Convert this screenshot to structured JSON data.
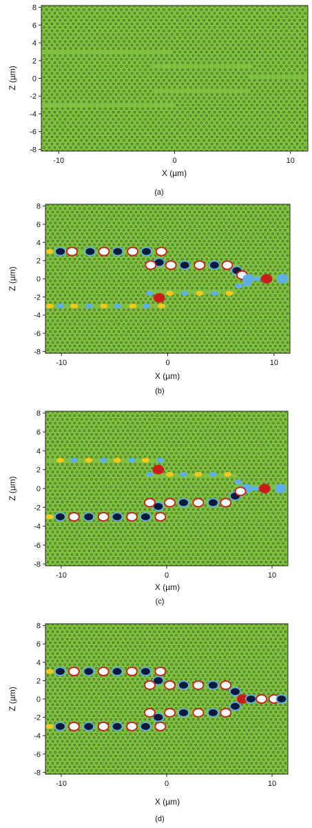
{
  "colors": {
    "background_field": "#7fc040",
    "hole_stroke": "#2f4a18",
    "positive_strong": "#cc1a1a",
    "positive_mid": "#f6c71c",
    "neutral_high": "#ffffff",
    "negative_mid": "#5fb0e8",
    "negative_strong": "#0b1a3a"
  },
  "chart_data": [
    {
      "type": "heatmap",
      "panel": "(a)",
      "caption": "(a)",
      "xlabel": "X (µm)",
      "ylabel": "Z (µm)",
      "xlim": [
        -11.5,
        11.5
      ],
      "ylim": [
        -8.2,
        8.2
      ],
      "x_ticks": [
        "-10",
        "0",
        "10"
      ],
      "y_ticks": [
        "8",
        "6",
        "4",
        "2",
        "0",
        "-2",
        "-4",
        "-6",
        "-8"
      ],
      "description_of_structure": "photonic crystal hole lattice with line-defect waveguides",
      "field_spots": []
    },
    {
      "type": "heatmap",
      "panel": "(b)",
      "caption": "(b)",
      "xlabel": "X (µm)",
      "ylabel": "Z (µm)",
      "xlim": [
        -11.5,
        11.5
      ],
      "ylim": [
        -8.2,
        8.2
      ],
      "x_ticks": [
        "-10",
        "0",
        "10"
      ],
      "y_ticks": [
        "8",
        "6",
        "4",
        "2",
        "0",
        "-2",
        "-4",
        "-6",
        "-8"
      ],
      "field_spots": [
        {
          "x": -11.1,
          "z": 3.0,
          "v": 0.4
        },
        {
          "x": -10.1,
          "z": 3.0,
          "v": -1
        },
        {
          "x": -9.0,
          "z": 3.0,
          "v": 0.8
        },
        {
          "x": -7.3,
          "z": 3.0,
          "v": -1
        },
        {
          "x": -6.0,
          "z": 3.0,
          "v": 0.8
        },
        {
          "x": -4.7,
          "z": 3.0,
          "v": -1
        },
        {
          "x": -3.3,
          "z": 3.0,
          "v": 0.8
        },
        {
          "x": -2.0,
          "z": 3.0,
          "v": -1
        },
        {
          "x": -0.6,
          "z": 3.0,
          "v": 0.8
        },
        {
          "x": -0.8,
          "z": 1.8,
          "v": -1
        },
        {
          "x": -1.6,
          "z": 1.5,
          "v": 0.8
        },
        {
          "x": 0.3,
          "z": 1.5,
          "v": 0.8
        },
        {
          "x": 1.6,
          "z": 1.5,
          "v": -1
        },
        {
          "x": 3.0,
          "z": 1.5,
          "v": 0.8
        },
        {
          "x": 4.4,
          "z": 1.5,
          "v": -1
        },
        {
          "x": 5.6,
          "z": 1.5,
          "v": 0.8
        },
        {
          "x": 6.5,
          "z": 0.9,
          "v": -1
        },
        {
          "x": 7.0,
          "z": 0.4,
          "v": 0.8
        },
        {
          "x": 7.6,
          "z": 0.0,
          "v": -0.6
        },
        {
          "x": 8.4,
          "z": 0.0,
          "v": -0.4
        },
        {
          "x": 9.3,
          "z": 0.0,
          "v": 1
        },
        {
          "x": 10.8,
          "z": 0.0,
          "v": -0.6
        },
        {
          "x": -11.1,
          "z": -3.0,
          "v": 0.5
        },
        {
          "x": -10.1,
          "z": -3.0,
          "v": -0.4
        },
        {
          "x": -8.8,
          "z": -3.0,
          "v": 0.5
        },
        {
          "x": -7.4,
          "z": -3.0,
          "v": -0.4
        },
        {
          "x": -6.0,
          "z": -3.0,
          "v": 0.5
        },
        {
          "x": -4.7,
          "z": -3.0,
          "v": -0.4
        },
        {
          "x": -3.3,
          "z": -3.0,
          "v": 0.5
        },
        {
          "x": -2.0,
          "z": -3.0,
          "v": -0.4
        },
        {
          "x": -0.6,
          "z": -3.0,
          "v": 0.5
        },
        {
          "x": -0.8,
          "z": -2.1,
          "v": 1
        },
        {
          "x": -1.7,
          "z": -1.6,
          "v": -0.5
        },
        {
          "x": 0.2,
          "z": -1.6,
          "v": 0.5
        },
        {
          "x": 1.6,
          "z": -1.6,
          "v": -0.4
        },
        {
          "x": 3.0,
          "z": -1.6,
          "v": 0.5
        },
        {
          "x": 4.4,
          "z": -1.6,
          "v": -0.4
        },
        {
          "x": 5.8,
          "z": -1.6,
          "v": 0.5
        },
        {
          "x": 6.7,
          "z": -0.8,
          "v": -0.4
        },
        {
          "x": 7.4,
          "z": -0.6,
          "v": -0.5
        }
      ]
    },
    {
      "type": "heatmap",
      "panel": "(c)",
      "caption": "(c)",
      "xlabel": "X (µm)",
      "ylabel": "Z (µm)",
      "xlim": [
        -11.5,
        11.5
      ],
      "ylim": [
        -8.2,
        8.2
      ],
      "x_ticks": [
        "-10",
        "0",
        "10"
      ],
      "y_ticks": [
        "8",
        "6",
        "4",
        "2",
        "0",
        "-2",
        "-4",
        "-6",
        "-8"
      ],
      "field_spots": [
        {
          "x": -10.1,
          "z": 3.0,
          "v": 0.5
        },
        {
          "x": -8.8,
          "z": 3.0,
          "v": -0.4
        },
        {
          "x": -7.4,
          "z": 3.0,
          "v": 0.5
        },
        {
          "x": -6.0,
          "z": 3.0,
          "v": -0.4
        },
        {
          "x": -4.7,
          "z": 3.0,
          "v": 0.5
        },
        {
          "x": -3.3,
          "z": 3.0,
          "v": -0.4
        },
        {
          "x": -2.0,
          "z": 3.0,
          "v": 0.5
        },
        {
          "x": -0.6,
          "z": 3.0,
          "v": -0.4
        },
        {
          "x": -0.8,
          "z": 2.0,
          "v": 1
        },
        {
          "x": -1.6,
          "z": 1.5,
          "v": -0.5
        },
        {
          "x": 0.3,
          "z": 1.5,
          "v": 0.5
        },
        {
          "x": 1.6,
          "z": 1.5,
          "v": -0.4
        },
        {
          "x": 3.0,
          "z": 1.5,
          "v": 0.5
        },
        {
          "x": 4.4,
          "z": 1.5,
          "v": -0.4
        },
        {
          "x": 5.8,
          "z": 1.5,
          "v": 0.5
        },
        {
          "x": 6.8,
          "z": 0.7,
          "v": -0.5
        },
        {
          "x": 7.6,
          "z": 0.0,
          "v": -0.6
        },
        {
          "x": 8.4,
          "z": 0.0,
          "v": -0.4
        },
        {
          "x": 9.3,
          "z": 0.0,
          "v": 1
        },
        {
          "x": 10.8,
          "z": 0.0,
          "v": -0.6
        },
        {
          "x": -11.1,
          "z": -3.0,
          "v": 0.4
        },
        {
          "x": -10.1,
          "z": -3.0,
          "v": -1
        },
        {
          "x": -8.8,
          "z": -3.0,
          "v": 0.8
        },
        {
          "x": -7.4,
          "z": -3.0,
          "v": -1
        },
        {
          "x": -6.0,
          "z": -3.0,
          "v": 0.8
        },
        {
          "x": -4.7,
          "z": -3.0,
          "v": -1
        },
        {
          "x": -3.3,
          "z": -3.0,
          "v": 0.8
        },
        {
          "x": -2.0,
          "z": -3.0,
          "v": -1
        },
        {
          "x": -0.6,
          "z": -3.0,
          "v": 0.8
        },
        {
          "x": -0.8,
          "z": -1.9,
          "v": -1
        },
        {
          "x": -1.6,
          "z": -1.5,
          "v": 0.8
        },
        {
          "x": 0.3,
          "z": -1.5,
          "v": 0.8
        },
        {
          "x": 1.6,
          "z": -1.5,
          "v": -1
        },
        {
          "x": 3.0,
          "z": -1.5,
          "v": 0.8
        },
        {
          "x": 4.4,
          "z": -1.5,
          "v": -1
        },
        {
          "x": 5.6,
          "z": -1.5,
          "v": 0.8
        },
        {
          "x": 6.5,
          "z": -0.8,
          "v": -1
        },
        {
          "x": 7.0,
          "z": -0.3,
          "v": 0.8
        }
      ]
    },
    {
      "type": "heatmap",
      "panel": "(d)",
      "caption": "(d)",
      "xlabel": "X (µm)",
      "ylabel": "Z (µm)",
      "xlim": [
        -11.5,
        11.5
      ],
      "ylim": [
        -8.2,
        8.2
      ],
      "x_ticks": [
        "-10",
        "0",
        "10"
      ],
      "y_ticks": [
        "8",
        "6",
        "4",
        "2",
        "0",
        "-2",
        "-4",
        "-6",
        "-8"
      ],
      "field_spots": [
        {
          "x": -11.1,
          "z": 3.0,
          "v": 0.4
        },
        {
          "x": -10.1,
          "z": 3.0,
          "v": -1
        },
        {
          "x": -8.8,
          "z": 3.0,
          "v": 0.8
        },
        {
          "x": -7.4,
          "z": 3.0,
          "v": -1
        },
        {
          "x": -6.0,
          "z": 3.0,
          "v": 0.8
        },
        {
          "x": -4.7,
          "z": 3.0,
          "v": -1
        },
        {
          "x": -3.3,
          "z": 3.0,
          "v": 0.8
        },
        {
          "x": -2.0,
          "z": 3.0,
          "v": -1
        },
        {
          "x": -0.6,
          "z": 3.0,
          "v": 0.8
        },
        {
          "x": -0.8,
          "z": 2.0,
          "v": -1
        },
        {
          "x": -1.6,
          "z": 1.5,
          "v": 0.8
        },
        {
          "x": 0.3,
          "z": 1.5,
          "v": 0.8
        },
        {
          "x": 1.6,
          "z": 1.5,
          "v": -1
        },
        {
          "x": 3.0,
          "z": 1.5,
          "v": 0.8
        },
        {
          "x": 4.4,
          "z": 1.5,
          "v": -1
        },
        {
          "x": 5.6,
          "z": 1.5,
          "v": 0.8
        },
        {
          "x": 6.5,
          "z": 0.8,
          "v": -1
        },
        {
          "x": -11.1,
          "z": -3.0,
          "v": 0.4
        },
        {
          "x": -10.1,
          "z": -3.0,
          "v": -1
        },
        {
          "x": -8.8,
          "z": -3.0,
          "v": 0.8
        },
        {
          "x": -7.4,
          "z": -3.0,
          "v": -1
        },
        {
          "x": -6.0,
          "z": -3.0,
          "v": 0.8
        },
        {
          "x": -4.7,
          "z": -3.0,
          "v": -1
        },
        {
          "x": -3.3,
          "z": -3.0,
          "v": 0.8
        },
        {
          "x": -2.0,
          "z": -3.0,
          "v": -1
        },
        {
          "x": -0.6,
          "z": -3.0,
          "v": 0.8
        },
        {
          "x": -0.8,
          "z": -2.0,
          "v": -1
        },
        {
          "x": -1.6,
          "z": -1.5,
          "v": 0.8
        },
        {
          "x": 0.3,
          "z": -1.5,
          "v": 0.8
        },
        {
          "x": 1.6,
          "z": -1.5,
          "v": -1
        },
        {
          "x": 3.0,
          "z": -1.5,
          "v": 0.8
        },
        {
          "x": 4.4,
          "z": -1.5,
          "v": -1
        },
        {
          "x": 5.6,
          "z": -1.5,
          "v": 0.8
        },
        {
          "x": 6.5,
          "z": -0.8,
          "v": -1
        },
        {
          "x": 7.2,
          "z": 0.0,
          "v": 1
        },
        {
          "x": 8.0,
          "z": 0.0,
          "v": -1
        },
        {
          "x": 9.0,
          "z": 0.0,
          "v": 0.8
        },
        {
          "x": 10.2,
          "z": 0.0,
          "v": 0.8
        },
        {
          "x": 10.9,
          "z": 0.0,
          "v": -1
        }
      ]
    }
  ]
}
